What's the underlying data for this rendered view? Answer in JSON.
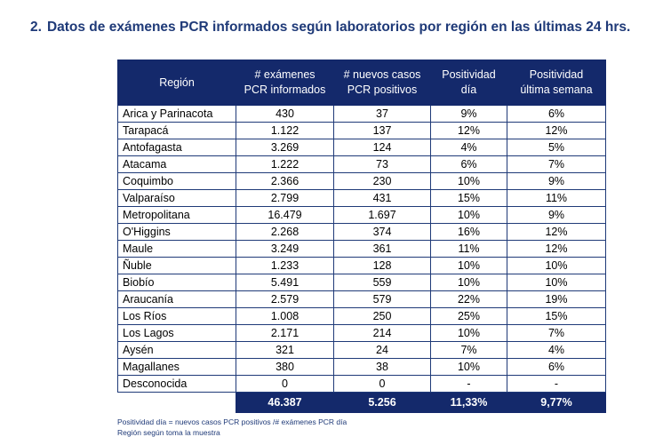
{
  "title": {
    "number": "2.",
    "text": "Datos de exámenes PCR informados según laboratorios por región en las últimas 24 hrs."
  },
  "table": {
    "headers": [
      [
        "Región"
      ],
      [
        "# exámenes",
        "PCR informados"
      ],
      [
        "# nuevos casos",
        "PCR positivos"
      ],
      [
        "Positividad",
        "día"
      ],
      [
        "Positividad",
        "última semana"
      ]
    ],
    "rows": [
      [
        "Arica y Parinacota",
        "430",
        "37",
        "9%",
        "6%"
      ],
      [
        "Tarapacá",
        "1.122",
        "137",
        "12%",
        "12%"
      ],
      [
        "Antofagasta",
        "3.269",
        "124",
        "4%",
        "5%"
      ],
      [
        "Atacama",
        "1.222",
        "73",
        "6%",
        "7%"
      ],
      [
        "Coquimbo",
        "2.366",
        "230",
        "10%",
        "9%"
      ],
      [
        "Valparaíso",
        "2.799",
        "431",
        "15%",
        "11%"
      ],
      [
        "Metropolitana",
        "16.479",
        "1.697",
        "10%",
        "9%"
      ],
      [
        "O'Higgins",
        "2.268",
        "374",
        "16%",
        "12%"
      ],
      [
        "Maule",
        "3.249",
        "361",
        "11%",
        "12%"
      ],
      [
        "Ñuble",
        "1.233",
        "128",
        "10%",
        "10%"
      ],
      [
        "Biobío",
        "5.491",
        "559",
        "10%",
        "10%"
      ],
      [
        "Araucanía",
        "2.579",
        "579",
        "22%",
        "19%"
      ],
      [
        "Los Ríos",
        "1.008",
        "250",
        "25%",
        "15%"
      ],
      [
        "Los Lagos",
        "2.171",
        "214",
        "10%",
        "7%"
      ],
      [
        "Aysén",
        "321",
        "24",
        "7%",
        "4%"
      ],
      [
        "Magallanes",
        "380",
        "38",
        "10%",
        "6%"
      ],
      [
        "Desconocida",
        "0",
        "0",
        "-",
        "-"
      ]
    ],
    "totals": [
      "46.387",
      "5.256",
      "11,33%",
      "9,77%"
    ]
  },
  "notes": [
    "Positividad día = nuevos casos PCR positivos /# exámenes PCR día",
    "Región según toma la muestra"
  ]
}
